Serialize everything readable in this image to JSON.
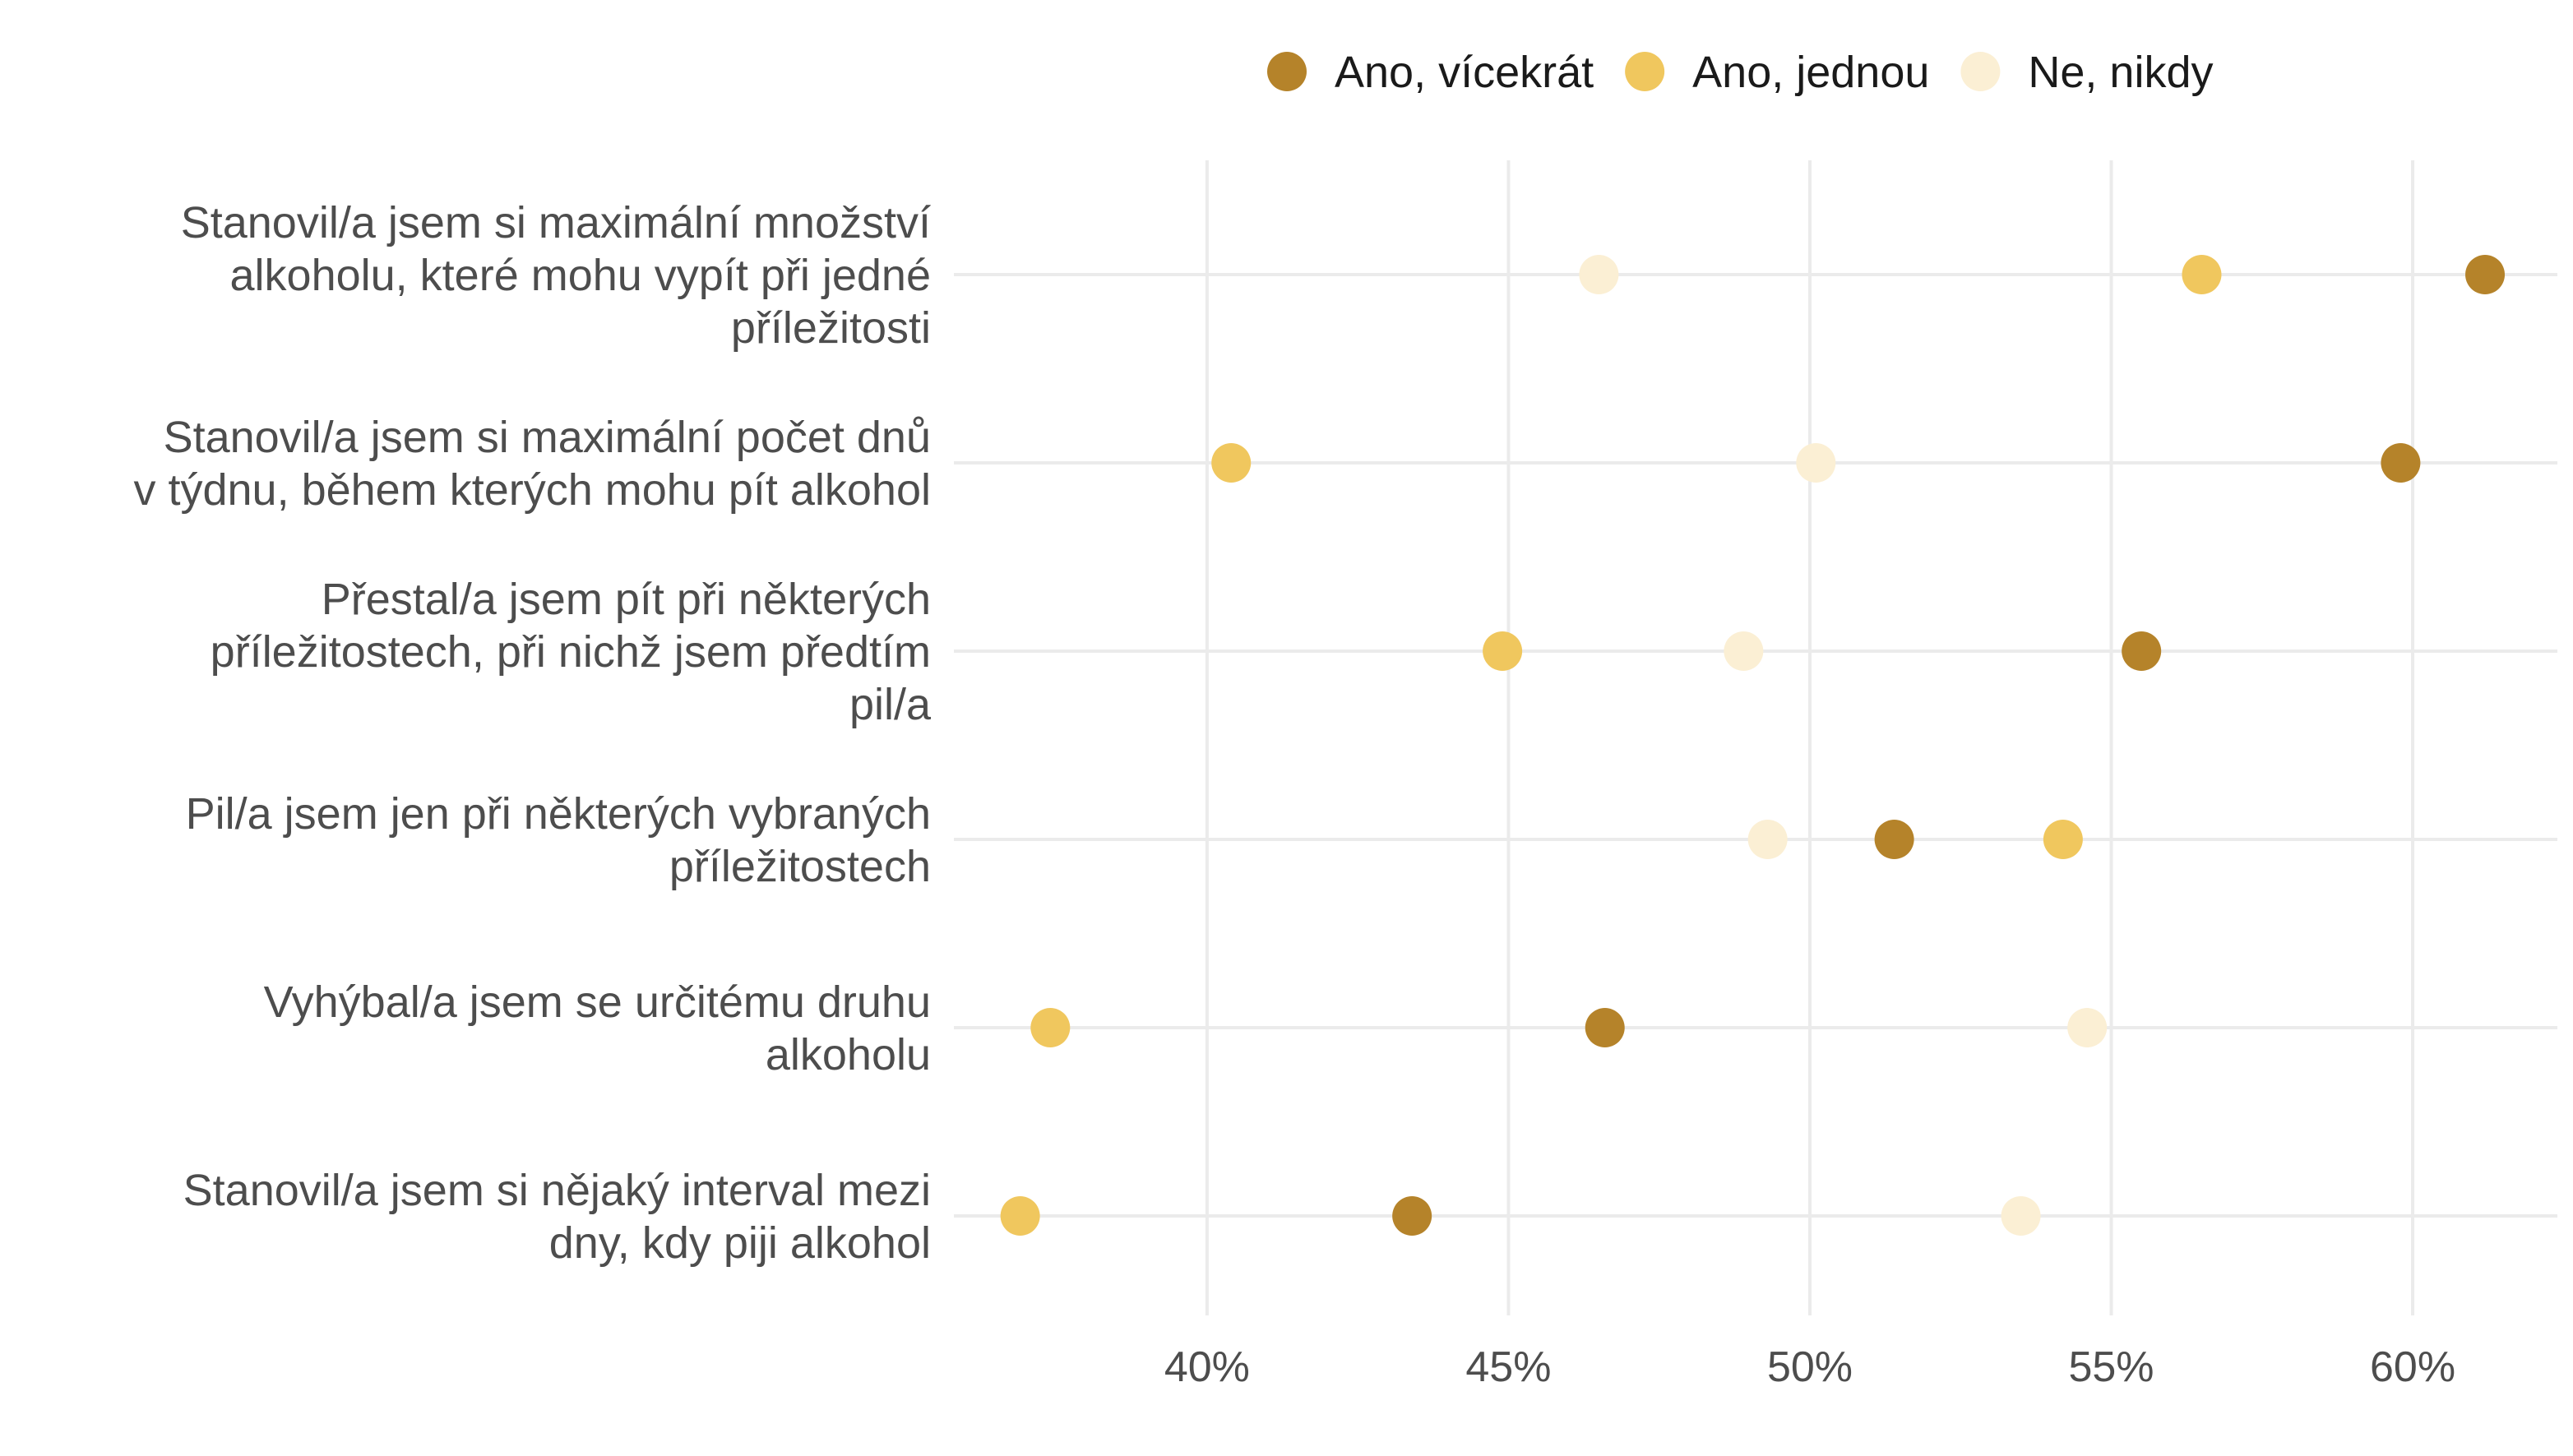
{
  "chart_data": {
    "type": "scatter",
    "title": "",
    "xlabel": "",
    "ylabel": "",
    "xlim": [
      35.8,
      62.4
    ],
    "x_ticks": [
      40,
      45,
      50,
      55,
      60
    ],
    "x_tick_labels": [
      "40%",
      "45%",
      "50%",
      "55%",
      "60%"
    ],
    "grid": true,
    "legend_position": "top",
    "categories": [
      [
        "Stanovil/a jsem si maximální množství",
        "alkoholu, které mohu vypít při jedné",
        "příležitosti"
      ],
      [
        "Stanovil/a jsem si maximální počet dnů",
        "v týdnu, během kterých mohu pít alkohol"
      ],
      [
        "Přestal/a jsem pít při některých",
        "příležitostech, při nichž jsem předtím",
        "pil/a"
      ],
      [
        "Pil/a jsem jen při některých vybraných",
        "příležitostech"
      ],
      [
        "Vyhýbal/a jsem se určitému druhu",
        "alkoholu"
      ],
      [
        "Stanovil/a jsem si nějaký interval mezi",
        "dny, kdy piji alkohol"
      ]
    ],
    "series": [
      {
        "name": "Ano, vícekrát",
        "color": "#b5832a",
        "values": [
          61.2,
          59.8,
          55.5,
          51.4,
          46.6,
          43.4
        ]
      },
      {
        "name": "Ano, jednou",
        "color": "#f0c75e",
        "values": [
          56.5,
          40.4,
          44.9,
          54.2,
          37.4,
          36.9
        ]
      },
      {
        "name": "Ne, nikdy",
        "color": "#fbefd4",
        "values": [
          46.5,
          50.1,
          48.9,
          49.3,
          54.6,
          53.5
        ]
      }
    ]
  }
}
